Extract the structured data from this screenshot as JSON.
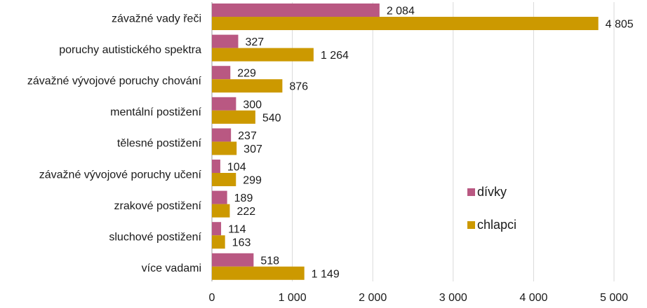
{
  "chart_data": {
    "type": "bar",
    "orientation": "horizontal",
    "categories": [
      "závažné vady řeči",
      "poruchy autistického spektra",
      "závažné vývojové poruchy chování",
      "mentální postižení",
      "tělesné postižení",
      "závažné vývojové poruchy učení",
      "zrakové postižení",
      "sluchové postižení",
      "více vadami"
    ],
    "series": [
      {
        "name": "dívky",
        "color": "#b95882",
        "values": [
          2084,
          327,
          229,
          300,
          237,
          104,
          189,
          114,
          518
        ],
        "labels": [
          "2 084",
          "327",
          "229",
          "300",
          "237",
          "104",
          "189",
          "114",
          "518"
        ]
      },
      {
        "name": "chlapci",
        "color": "#cc9900",
        "values": [
          4805,
          1264,
          876,
          540,
          307,
          299,
          222,
          163,
          1149
        ],
        "labels": [
          "4 805",
          "1 264",
          "876",
          "540",
          "307",
          "299",
          "222",
          "163",
          "1 149"
        ]
      }
    ],
    "xlim": [
      0,
      5000
    ],
    "xticks": [
      0,
      1000,
      2000,
      3000,
      4000,
      5000
    ],
    "xtick_labels": [
      "0",
      "1 000",
      "2 000",
      "3 000",
      "4 000",
      "5 000"
    ],
    "grid": "vertical",
    "legend_position": "right"
  }
}
